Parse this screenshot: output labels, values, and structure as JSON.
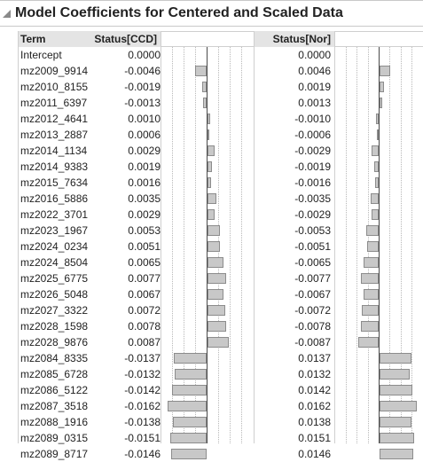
{
  "title": "Model Coefficients for Centered and Scaled Data",
  "columns": {
    "term": "Term",
    "ccd": "Status[CCD]",
    "nor": "Status[Nor]"
  },
  "max_abs": 0.0165,
  "rows": [
    {
      "term": "Intercept",
      "ccd": "0.0000",
      "nor": "0.0000",
      "v": 0
    },
    {
      "term": "mz2009_9914",
      "ccd": "-0.0046",
      "nor": "0.0046",
      "v": -0.0046
    },
    {
      "term": "mz2010_8155",
      "ccd": "-0.0019",
      "nor": "0.0019",
      "v": -0.0019
    },
    {
      "term": "mz2011_6397",
      "ccd": "-0.0013",
      "nor": "0.0013",
      "v": -0.0013
    },
    {
      "term": "mz2012_4641",
      "ccd": "0.0010",
      "nor": "-0.0010",
      "v": 0.001
    },
    {
      "term": "mz2013_2887",
      "ccd": "0.0006",
      "nor": "-0.0006",
      "v": 0.0006
    },
    {
      "term": "mz2014_1134",
      "ccd": "0.0029",
      "nor": "-0.0029",
      "v": 0.0029
    },
    {
      "term": "mz2014_9383",
      "ccd": "0.0019",
      "nor": "-0.0019",
      "v": 0.0019
    },
    {
      "term": "mz2015_7634",
      "ccd": "0.0016",
      "nor": "-0.0016",
      "v": 0.0016
    },
    {
      "term": "mz2016_5886",
      "ccd": "0.0035",
      "nor": "-0.0035",
      "v": 0.0035
    },
    {
      "term": "mz2022_3701",
      "ccd": "0.0029",
      "nor": "-0.0029",
      "v": 0.0029
    },
    {
      "term": "mz2023_1967",
      "ccd": "0.0053",
      "nor": "-0.0053",
      "v": 0.0053
    },
    {
      "term": "mz2024_0234",
      "ccd": "0.0051",
      "nor": "-0.0051",
      "v": 0.0051
    },
    {
      "term": "mz2024_8504",
      "ccd": "0.0065",
      "nor": "-0.0065",
      "v": 0.0065
    },
    {
      "term": "mz2025_6775",
      "ccd": "0.0077",
      "nor": "-0.0077",
      "v": 0.0077
    },
    {
      "term": "mz2026_5048",
      "ccd": "0.0067",
      "nor": "-0.0067",
      "v": 0.0067
    },
    {
      "term": "mz2027_3322",
      "ccd": "0.0072",
      "nor": "-0.0072",
      "v": 0.0072
    },
    {
      "term": "mz2028_1598",
      "ccd": "0.0078",
      "nor": "-0.0078",
      "v": 0.0078
    },
    {
      "term": "mz2028_9876",
      "ccd": "0.0087",
      "nor": "-0.0087",
      "v": 0.0087
    },
    {
      "term": "mz2084_8335",
      "ccd": "-0.0137",
      "nor": "0.0137",
      "v": -0.0137
    },
    {
      "term": "mz2085_6728",
      "ccd": "-0.0132",
      "nor": "0.0132",
      "v": -0.0132
    },
    {
      "term": "mz2086_5122",
      "ccd": "-0.0142",
      "nor": "0.0142",
      "v": -0.0142
    },
    {
      "term": "mz2087_3518",
      "ccd": "-0.0162",
      "nor": "0.0162",
      "v": -0.0162
    },
    {
      "term": "mz2088_1916",
      "ccd": "-0.0138",
      "nor": "0.0138",
      "v": -0.0138
    },
    {
      "term": "mz2089_0315",
      "ccd": "-0.0151",
      "nor": "0.0151",
      "v": -0.0151
    },
    {
      "term": "mz2089_8717",
      "ccd": "-0.0146",
      "nor": "0.0146",
      "v": -0.0146
    }
  ]
}
